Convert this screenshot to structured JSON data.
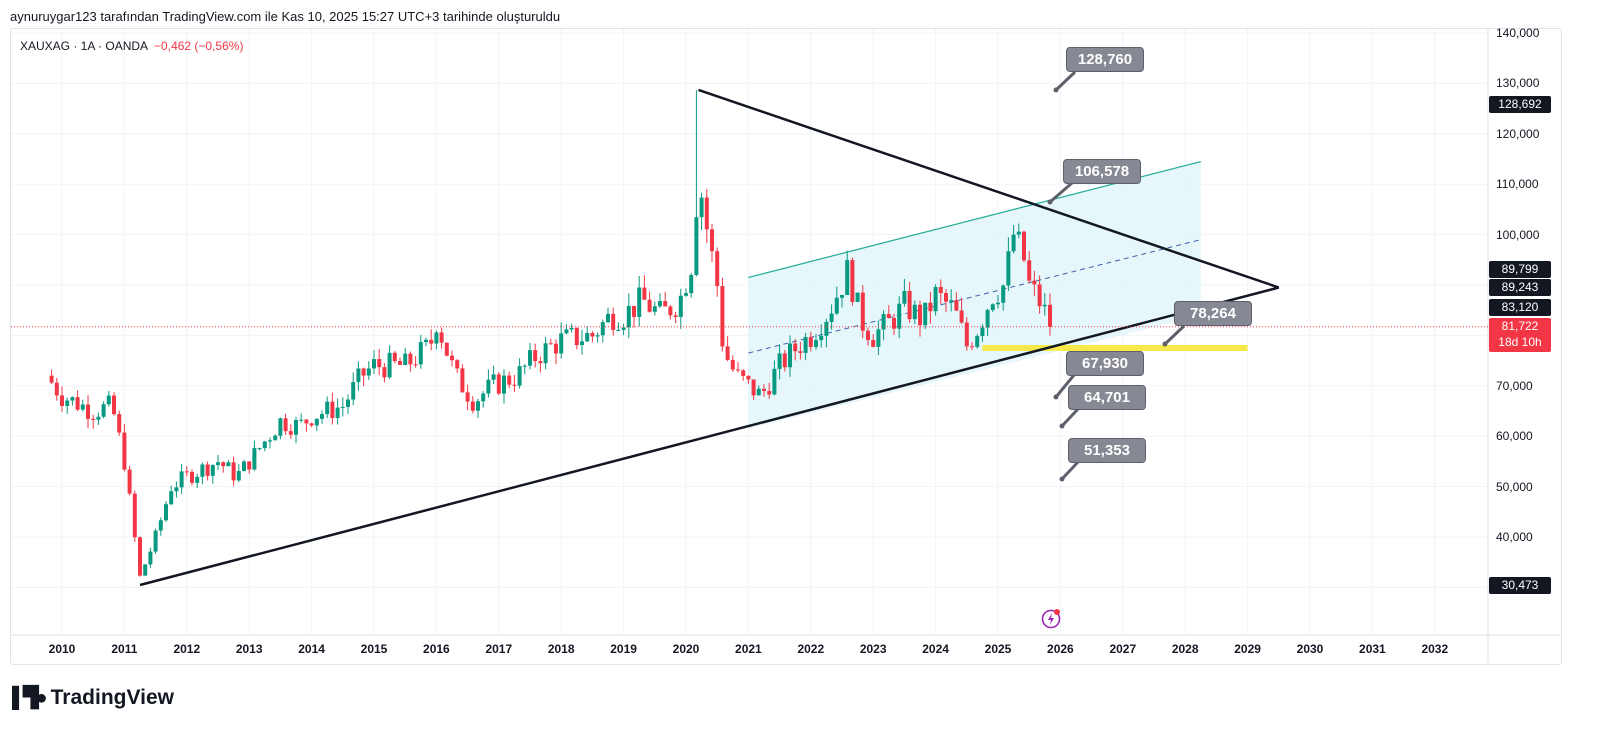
{
  "credit": "aynuruygar123 tarafından TradingView.com ile Kas 10, 2025 15:27 UTC+3 tarihinde oluşturuldu",
  "legend": {
    "symbol": "XAUXAG · 1A · OANDA",
    "change": "−0,462 (−0,56%)"
  },
  "colors": {
    "up": "#089981",
    "down": "#f23645",
    "channel": "#22ab94",
    "fill": "#e0f6fa",
    "highlight": "#f7e84b"
  },
  "price_axis": {
    "labels": [
      "140,000",
      "130,000",
      "120,000",
      "110,000",
      "100,000",
      "70,000",
      "60,000",
      "50,000",
      "40,000"
    ],
    "tags": [
      {
        "value": "128,692"
      },
      {
        "value": "89,799"
      },
      {
        "value": "89,243"
      },
      {
        "value": "83,120"
      },
      {
        "value": "30,473"
      }
    ],
    "current": {
      "price": "81,722",
      "countdown": "18d 10h"
    }
  },
  "callouts": [
    "128,760",
    "106,578",
    "78,264",
    "67,930",
    "64,701",
    "51,353"
  ],
  "logo": "TradingView",
  "chart_data": {
    "type": "candlestick",
    "title": "XAUXAG · 1A · OANDA",
    "ylim": [
      20000,
      140000
    ],
    "x_ticks": [
      "2010",
      "2011",
      "2012",
      "2013",
      "2014",
      "2015",
      "2016",
      "2017",
      "2018",
      "2019",
      "2020",
      "2021",
      "2022",
      "2023",
      "2024",
      "2025",
      "2026",
      "2027",
      "2028",
      "2029",
      "2030",
      "2031",
      "2032"
    ],
    "close_path": [
      [
        2009.75,
        72000
      ],
      [
        2010.0,
        68000
      ],
      [
        2010.5,
        65000
      ],
      [
        2010.8,
        66000
      ],
      [
        2011.0,
        55000
      ],
      [
        2011.25,
        32000
      ],
      [
        2011.5,
        40000
      ],
      [
        2011.75,
        50000
      ],
      [
        2012.0,
        52000
      ],
      [
        2012.5,
        55000
      ],
      [
        2012.8,
        52000
      ],
      [
        2013.0,
        55000
      ],
      [
        2013.5,
        63000
      ],
      [
        2013.8,
        62000
      ],
      [
        2014.0,
        64000
      ],
      [
        2014.5,
        66000
      ],
      [
        2014.8,
        72000
      ],
      [
        2015.0,
        74000
      ],
      [
        2015.5,
        74000
      ],
      [
        2015.9,
        78000
      ],
      [
        2016.0,
        83000
      ],
      [
        2016.3,
        72000
      ],
      [
        2016.6,
        67000
      ],
      [
        2016.9,
        70000
      ],
      [
        2017.3,
        72000
      ],
      [
        2017.6,
        76000
      ],
      [
        2018.0,
        79000
      ],
      [
        2018.5,
        80000
      ],
      [
        2018.8,
        84000
      ],
      [
        2019.0,
        84000
      ],
      [
        2019.3,
        87000
      ],
      [
        2019.6,
        84000
      ],
      [
        2019.9,
        87000
      ],
      [
        2020.1,
        95000
      ],
      [
        2020.2,
        112000
      ],
      [
        2020.35,
        100000
      ],
      [
        2020.5,
        90000
      ],
      [
        2020.6,
        77000
      ],
      [
        2020.8,
        72000
      ],
      [
        2021.0,
        70000
      ],
      [
        2021.2,
        68000
      ],
      [
        2021.5,
        74000
      ],
      [
        2021.8,
        78000
      ],
      [
        2022.0,
        80000
      ],
      [
        2022.3,
        85000
      ],
      [
        2022.6,
        93000
      ],
      [
        2022.8,
        83000
      ],
      [
        2023.0,
        80000
      ],
      [
        2023.3,
        83000
      ],
      [
        2023.5,
        86000
      ],
      [
        2023.8,
        83000
      ],
      [
        2024.0,
        88000
      ],
      [
        2024.3,
        85000
      ],
      [
        2024.5,
        78000
      ],
      [
        2024.7,
        82000
      ],
      [
        2024.9,
        88000
      ],
      [
        2025.1,
        90000
      ],
      [
        2025.25,
        100000
      ],
      [
        2025.4,
        96000
      ],
      [
        2025.5,
        90000
      ],
      [
        2025.7,
        86000
      ],
      [
        2025.85,
        81722
      ]
    ],
    "trendlines": [
      {
        "from": [
          2011.25,
          30473
        ],
        "to": [
          2029.5,
          89500
        ]
      },
      {
        "from": [
          2020.2,
          128692
        ],
        "to": [
          2029.5,
          89500
        ]
      }
    ],
    "channel": {
      "from_year": 2021.0,
      "to_year": 2028.25,
      "upper": [
        91500,
        114500
      ],
      "mid": [
        76500,
        99000
      ],
      "lower": [
        61500,
        84000
      ]
    },
    "support_zone": {
      "from_year": 2024.75,
      "to_year": 2029.0,
      "price": 77500
    },
    "current_price": 81722
  }
}
